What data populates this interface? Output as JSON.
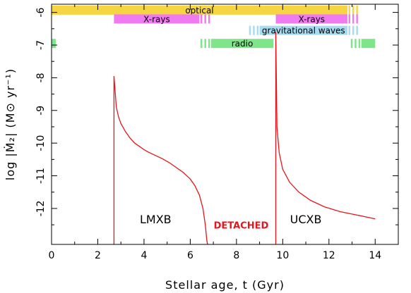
{
  "chart_data": {
    "type": "line",
    "title": "",
    "xlabel": "Stellar age, t  (Gyr)",
    "ylabel": "log |Ṁ₂|  (M⊙ yr⁻¹)",
    "xlim": [
      0,
      15
    ],
    "ylim": [
      -13.1,
      -5.75
    ],
    "x_ticks": [
      0,
      2,
      4,
      6,
      8,
      10,
      12,
      14
    ],
    "y_ticks": [
      -6,
      -7,
      -8,
      -9,
      -10,
      -11,
      -12
    ],
    "series": [
      {
        "name": "",
        "color": "#e8141c",
        "points": [
          [
            2.7,
            -13.1
          ],
          [
            2.7,
            -7.95
          ],
          [
            2.75,
            -8.4
          ],
          [
            2.8,
            -8.9
          ],
          [
            2.9,
            -9.2
          ],
          [
            3.0,
            -9.4
          ],
          [
            3.2,
            -9.65
          ],
          [
            3.4,
            -9.85
          ],
          [
            3.6,
            -10.0
          ],
          [
            3.8,
            -10.1
          ],
          [
            4.0,
            -10.2
          ],
          [
            4.2,
            -10.28
          ],
          [
            4.5,
            -10.38
          ],
          [
            4.8,
            -10.48
          ],
          [
            5.1,
            -10.6
          ],
          [
            5.4,
            -10.75
          ],
          [
            5.7,
            -10.9
          ],
          [
            6.0,
            -11.1
          ],
          [
            6.2,
            -11.3
          ],
          [
            6.4,
            -11.6
          ],
          [
            6.55,
            -12.0
          ],
          [
            6.65,
            -12.5
          ],
          [
            6.72,
            -13.0
          ],
          [
            6.75,
            -13.1
          ]
        ]
      },
      {
        "name": "",
        "color": "#e8141c",
        "points": [
          [
            9.7,
            -13.1
          ],
          [
            9.7,
            -6.6
          ],
          [
            9.75,
            -9.5
          ],
          [
            9.85,
            -10.3
          ],
          [
            10.0,
            -10.8
          ],
          [
            10.3,
            -11.2
          ],
          [
            10.7,
            -11.5
          ],
          [
            11.2,
            -11.75
          ],
          [
            11.8,
            -11.95
          ],
          [
            12.5,
            -12.1
          ],
          [
            13.2,
            -12.2
          ],
          [
            14.0,
            -12.32
          ]
        ]
      }
    ],
    "bands": [
      {
        "label": "optical",
        "color": "#f5d542",
        "x_start": 0.0,
        "x_end": 12.8,
        "dash_end": 13.3,
        "y_center": -5.93
      },
      {
        "label": "X-rays",
        "color": "#f07af0",
        "x_start": 2.7,
        "x_end": 6.4,
        "dash_end": 6.9,
        "y_center": -6.2
      },
      {
        "label": "X-rays",
        "color": "#f07af0",
        "x_start": 9.7,
        "x_end": 12.8,
        "dash_end": 13.3,
        "y_center": -6.2
      },
      {
        "label": "gravitational waves",
        "color": "#a6dbf0",
        "x_start": 9.0,
        "x_end": 12.8,
        "dash_start": 8.5,
        "dash_end": 13.3,
        "y_center": -6.55
      },
      {
        "label": "radio",
        "color": "#7ee58a",
        "x_start": 6.9,
        "x_end": 9.6,
        "dash_start": 6.4,
        "y_center": -6.95
      },
      {
        "label": "",
        "color": "#7ee58a",
        "x_start": 0.0,
        "x_end": 0.18,
        "y_center": -6.95
      },
      {
        "label": "",
        "color": "#7ee58a",
        "x_start": 13.4,
        "x_end": 14.0,
        "dash_start": 12.9,
        "y_center": -6.95
      }
    ],
    "annotations": [
      {
        "text": "LMXB",
        "x": 4.5,
        "y": -12.45,
        "style": "region"
      },
      {
        "text": "DETACHED",
        "x": 8.2,
        "y": -12.62,
        "style": "detached"
      },
      {
        "text": "UCXB",
        "x": 11.0,
        "y": -12.45,
        "style": "region"
      }
    ]
  }
}
